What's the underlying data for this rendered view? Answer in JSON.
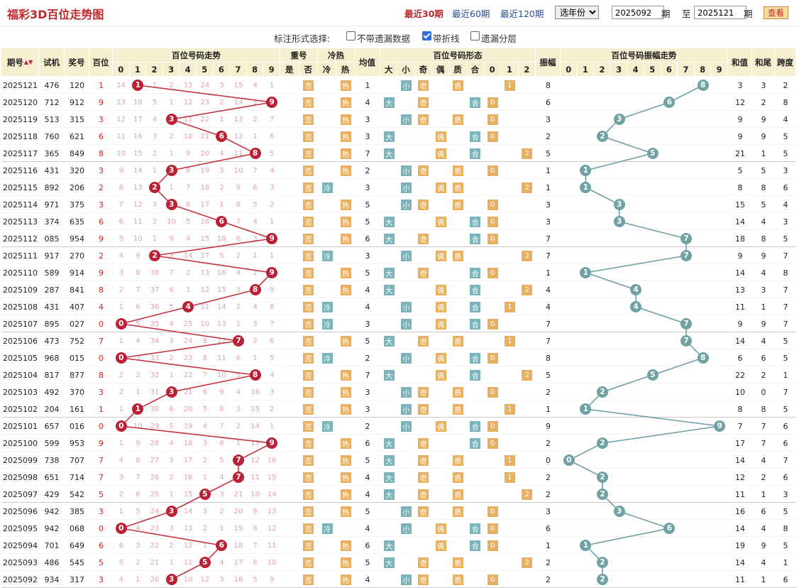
{
  "header": {
    "title": "福彩3D百位走势图",
    "links": [
      "最近30期",
      "最近60期",
      "最近120期"
    ],
    "year_select": "选年份",
    "from_value": "2025092",
    "period_label": "期",
    "to_label": "至",
    "to_value": "2025121",
    "query_button": "查看"
  },
  "options": {
    "label": "标注形式选择:",
    "items": [
      {
        "label": "不带遗漏数据",
        "checked": false
      },
      {
        "label": "带折线",
        "checked": true
      },
      {
        "label": "遗漏分层",
        "checked": false
      }
    ]
  },
  "table": {
    "headers": {
      "issue": "期号",
      "trial": "试机",
      "prize": "奖号",
      "hundreds": "百位",
      "trend_group": "百位号码走势",
      "repeat_group": "重号",
      "repeat_yes": "是",
      "repeat_no": "否",
      "hc_group": "冷热",
      "cold": "冷",
      "hot": "热",
      "avg": "均值",
      "form_group": "百位号码形态",
      "form_cols": [
        "大",
        "小",
        "奇",
        "偶",
        "质",
        "合",
        "0",
        "1",
        "2"
      ],
      "amp": "振幅",
      "amp_group": "百位号码振幅走势",
      "sum": "和值",
      "tail": "和尾",
      "span": "跨度",
      "digits": [
        "0",
        "1",
        "2",
        "3",
        "4",
        "5",
        "6",
        "7",
        "8",
        "9"
      ]
    },
    "sort_icon": "sort-arrows-icon",
    "rows": [
      {
        "issue": "2025121",
        "trial": "476",
        "prize": "120",
        "h": 1,
        "avg": "1",
        "amp": "8",
        "sum": "3",
        "tail": "3",
        "span": "2",
        "trend": [
          "14",
          "1",
          "2",
          "13",
          "24",
          "3",
          "15",
          "4",
          "1"
        ]
      },
      {
        "issue": "2025120",
        "trial": "712",
        "prize": "912",
        "h": 9,
        "avg": "4",
        "amp": "6",
        "sum": "12",
        "tail": "2",
        "span": "8",
        "trend": [
          "13",
          "18",
          "5",
          "1",
          "12",
          "23",
          "2",
          "14",
          "3"
        ]
      },
      {
        "issue": "2025119",
        "trial": "513",
        "prize": "315",
        "h": 3,
        "avg": "3",
        "amp": "3",
        "sum": "9",
        "tail": "9",
        "span": "4",
        "trend": [
          "12",
          "17",
          "4",
          "11",
          "22",
          "1",
          "13",
          "2",
          "7"
        ]
      },
      {
        "issue": "2025118",
        "trial": "760",
        "prize": "621",
        "h": 6,
        "avg": "3",
        "amp": "2",
        "sum": "9",
        "tail": "9",
        "span": "5",
        "trend": [
          "11",
          "16",
          "3",
          "2",
          "10",
          "21",
          "12",
          "1",
          "6"
        ]
      },
      {
        "issue": "2025117",
        "trial": "365",
        "prize": "849",
        "h": 8,
        "avg": "7",
        "amp": "5",
        "sum": "21",
        "tail": "1",
        "span": "5",
        "trend": [
          "10",
          "15",
          "2",
          "1",
          "9",
          "20",
          "4",
          "11",
          "5"
        ]
      },
      {
        "issue": "2025116",
        "trial": "431",
        "prize": "320",
        "h": 3,
        "avg": "2",
        "amp": "1",
        "sum": "5",
        "tail": "5",
        "span": "3",
        "trend": [
          "9",
          "14",
          "1",
          "8",
          "19",
          "3",
          "10",
          "7",
          "4"
        ]
      },
      {
        "issue": "2025115",
        "trial": "892",
        "prize": "206",
        "h": 2,
        "avg": "3",
        "amp": "1",
        "sum": "8",
        "tail": "8",
        "span": "6",
        "trend": [
          "8",
          "13",
          "1",
          "7",
          "18",
          "2",
          "9",
          "6",
          "3"
        ]
      },
      {
        "issue": "2025114",
        "trial": "971",
        "prize": "375",
        "h": 3,
        "avg": "5",
        "amp": "3",
        "sum": "15",
        "tail": "5",
        "span": "4",
        "trend": [
          "7",
          "12",
          "3",
          "6",
          "17",
          "1",
          "8",
          "5",
          "2"
        ]
      },
      {
        "issue": "2025113",
        "trial": "374",
        "prize": "635",
        "h": 6,
        "avg": "5",
        "amp": "3",
        "sum": "14",
        "tail": "4",
        "span": "3",
        "trend": [
          "6",
          "11",
          "2",
          "10",
          "5",
          "16",
          "7",
          "4",
          "1"
        ]
      },
      {
        "issue": "2025112",
        "trial": "085",
        "prize": "954",
        "h": 9,
        "avg": "6",
        "amp": "7",
        "sum": "18",
        "tail": "8",
        "span": "5",
        "trend": [
          "5",
          "10",
          "1",
          "9",
          "4",
          "15",
          "18",
          "6",
          "3"
        ]
      },
      {
        "issue": "2025111",
        "trial": "917",
        "prize": "270",
        "h": 2,
        "avg": "3",
        "amp": "7",
        "sum": "9",
        "tail": "9",
        "span": "7",
        "trend": [
          "4",
          "9",
          "3",
          "14",
          "17",
          "5",
          "2",
          "1",
          "1"
        ]
      },
      {
        "issue": "2025110",
        "trial": "589",
        "prize": "914",
        "h": 9,
        "avg": "5",
        "amp": "1",
        "sum": "14",
        "tail": "4",
        "span": "8",
        "trend": [
          "3",
          "8",
          "38",
          "7",
          "2",
          "13",
          "16",
          "4",
          "1"
        ]
      },
      {
        "issue": "2025109",
        "trial": "287",
        "prize": "841",
        "h": 8,
        "avg": "4",
        "amp": "4",
        "sum": "13",
        "tail": "3",
        "span": "7",
        "trend": [
          "2",
          "7",
          "37",
          "6",
          "1",
          "12",
          "15",
          "3",
          "9"
        ]
      },
      {
        "issue": "2025108",
        "trial": "431",
        "prize": "407",
        "h": 4,
        "avg": "4",
        "amp": "4",
        "sum": "11",
        "tail": "1",
        "span": "7",
        "trend": [
          "1",
          "6",
          "36",
          "5",
          "11",
          "14",
          "2",
          "4",
          "8"
        ]
      },
      {
        "issue": "2025107",
        "trial": "895",
        "prize": "027",
        "h": 0,
        "avg": "3",
        "amp": "7",
        "sum": "9",
        "tail": "9",
        "span": "7",
        "trend": [
          "5",
          "35",
          "4",
          "25",
          "10",
          "13",
          "1",
          "3",
          "7"
        ]
      },
      {
        "issue": "2025106",
        "trial": "473",
        "prize": "752",
        "h": 7,
        "avg": "5",
        "amp": "7",
        "sum": "14",
        "tail": "4",
        "span": "5",
        "trend": [
          "1",
          "4",
          "34",
          "3",
          "24",
          "9",
          "12",
          "2",
          "6"
        ]
      },
      {
        "issue": "2025105",
        "trial": "968",
        "prize": "015",
        "h": 0,
        "avg": "2",
        "amp": "8",
        "sum": "6",
        "tail": "6",
        "span": "5",
        "trend": [
          "3",
          "33",
          "2",
          "23",
          "8",
          "11",
          "6",
          "1",
          "5"
        ]
      },
      {
        "issue": "2025104",
        "trial": "817",
        "prize": "877",
        "h": 8,
        "avg": "7",
        "amp": "5",
        "sum": "22",
        "tail": "2",
        "span": "1",
        "trend": [
          "2",
          "2",
          "32",
          "1",
          "22",
          "7",
          "10",
          "5",
          "4"
        ]
      },
      {
        "issue": "2025103",
        "trial": "492",
        "prize": "370",
        "h": 3,
        "avg": "3",
        "amp": "2",
        "sum": "10",
        "tail": "0",
        "span": "7",
        "trend": [
          "2",
          "1",
          "31",
          "21",
          "6",
          "9",
          "4",
          "16",
          "3"
        ]
      },
      {
        "issue": "2025102",
        "trial": "204",
        "prize": "161",
        "h": 1,
        "avg": "3",
        "amp": "1",
        "sum": "8",
        "tail": "8",
        "span": "5",
        "trend": [
          "1",
          "30",
          "6",
          "20",
          "5",
          "8",
          "3",
          "15",
          "2"
        ]
      },
      {
        "issue": "2025101",
        "trial": "657",
        "prize": "016",
        "h": 0,
        "avg": "2",
        "amp": "9",
        "sum": "7",
        "tail": "7",
        "span": "6",
        "trend": [
          "10",
          "29",
          "5",
          "19",
          "4",
          "7",
          "2",
          "14",
          "1"
        ]
      },
      {
        "issue": "2025100",
        "trial": "599",
        "prize": "953",
        "h": 9,
        "avg": "6",
        "amp": "2",
        "sum": "17",
        "tail": "7",
        "span": "6",
        "trend": [
          "1",
          "9",
          "28",
          "4",
          "18",
          "3",
          "6",
          "1",
          "13"
        ]
      },
      {
        "issue": "2025099",
        "trial": "738",
        "prize": "707",
        "h": 7,
        "avg": "5",
        "amp": "0",
        "sum": "14",
        "tail": "4",
        "span": "7",
        "trend": [
          "4",
          "8",
          "27",
          "3",
          "17",
          "2",
          "5",
          "12",
          "16"
        ]
      },
      {
        "issue": "2025098",
        "trial": "651",
        "prize": "714",
        "h": 7,
        "avg": "4",
        "amp": "2",
        "sum": "12",
        "tail": "2",
        "span": "6",
        "trend": [
          "3",
          "7",
          "26",
          "2",
          "16",
          "1",
          "4",
          "11",
          "15"
        ]
      },
      {
        "issue": "2025097",
        "trial": "429",
        "prize": "542",
        "h": 5,
        "avg": "4",
        "amp": "2",
        "sum": "11",
        "tail": "1",
        "span": "3",
        "trend": [
          "2",
          "6",
          "25",
          "1",
          "15",
          "3",
          "21",
          "10",
          "14"
        ]
      },
      {
        "issue": "2025096",
        "trial": "942",
        "prize": "385",
        "h": 3,
        "avg": "5",
        "amp": "3",
        "sum": "16",
        "tail": "6",
        "span": "5",
        "trend": [
          "1",
          "5",
          "24",
          "14",
          "3",
          "2",
          "20",
          "9",
          "13"
        ]
      },
      {
        "issue": "2025095",
        "trial": "942",
        "prize": "068",
        "h": 0,
        "avg": "4",
        "amp": "6",
        "sum": "14",
        "tail": "4",
        "span": "8",
        "trend": [
          "4",
          "23",
          "3",
          "13",
          "2",
          "1",
          "19",
          "8",
          "12"
        ]
      },
      {
        "issue": "2025094",
        "trial": "701",
        "prize": "649",
        "h": 6,
        "avg": "6",
        "amp": "1",
        "sum": "19",
        "tail": "9",
        "span": "5",
        "trend": [
          "6",
          "3",
          "22",
          "2",
          "12",
          "1",
          "18",
          "7",
          "11"
        ]
      },
      {
        "issue": "2025093",
        "trial": "486",
        "prize": "545",
        "h": 5,
        "avg": "5",
        "amp": "2",
        "sum": "14",
        "tail": "4",
        "span": "1",
        "trend": [
          "5",
          "2",
          "21",
          "1",
          "11",
          "4",
          "17",
          "6",
          "10"
        ]
      },
      {
        "issue": "2025092",
        "trial": "934",
        "prize": "317",
        "h": 3,
        "avg": "4",
        "amp": "2",
        "sum": "11",
        "tail": "1",
        "span": "6",
        "trend": [
          "4",
          "1",
          "20",
          "10",
          "12",
          "3",
          "16",
          "5",
          "9"
        ]
      }
    ]
  }
}
